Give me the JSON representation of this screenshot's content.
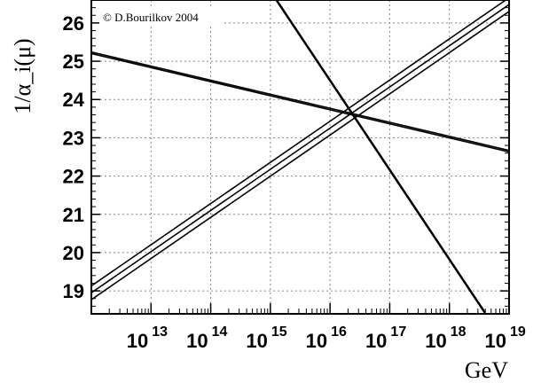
{
  "chart_data": {
    "type": "line",
    "title": "",
    "xlabel": "GeV",
    "ylabel": "1/α_i(μ)",
    "xscale": "log10",
    "x_tick_exponents": [
      13,
      14,
      15,
      16,
      17,
      18,
      19
    ],
    "x_tick_base": "10",
    "xlim_exponent": [
      12,
      19
    ],
    "ylim": [
      18.4,
      26.6
    ],
    "y_ticks": [
      19,
      20,
      21,
      22,
      23,
      24,
      25,
      26
    ],
    "grid": true,
    "annotation": "© D.Bourilkov 2004",
    "series": [
      {
        "points": [
          [
            12,
            25.2
          ],
          [
            19,
            22.63
          ]
        ],
        "band_offsets": [
          0,
          0.04
        ]
      },
      {
        "points": [
          [
            15.05,
            26.7
          ],
          [
            18.6,
            18.4
          ]
        ],
        "band_offsets": [
          0,
          0.04
        ]
      },
      {
        "points": [
          [
            12,
            18.95
          ],
          [
            19,
            26.48
          ]
        ],
        "band_offsets": [
          -0.18,
          0,
          0.18
        ]
      }
    ]
  }
}
